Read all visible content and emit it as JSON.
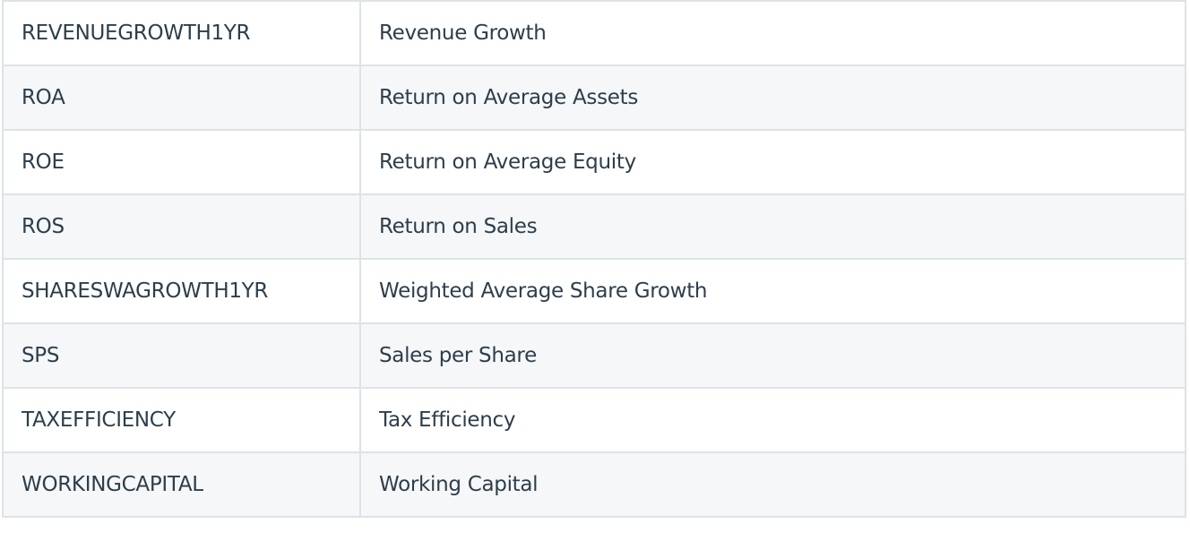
{
  "table": {
    "rows": [
      {
        "code": "REVENUEGROWTH1YR",
        "description": "Revenue Growth"
      },
      {
        "code": "ROA",
        "description": "Return on Average Assets"
      },
      {
        "code": "ROE",
        "description": "Return on Average Equity"
      },
      {
        "code": "ROS",
        "description": "Return on Sales"
      },
      {
        "code": "SHARESWAGROWTH1YR",
        "description": "Weighted Average Share Growth"
      },
      {
        "code": "SPS",
        "description": "Sales per Share"
      },
      {
        "code": "TAXEFFICIENCY",
        "description": "Tax Efficiency"
      },
      {
        "code": "WORKINGCAPITAL",
        "description": "Working Capital"
      }
    ]
  },
  "colors": {
    "text": "#2d3e4a",
    "border": "#dde3e7",
    "row_alt": "#f5f7f9",
    "row": "#ffffff"
  }
}
